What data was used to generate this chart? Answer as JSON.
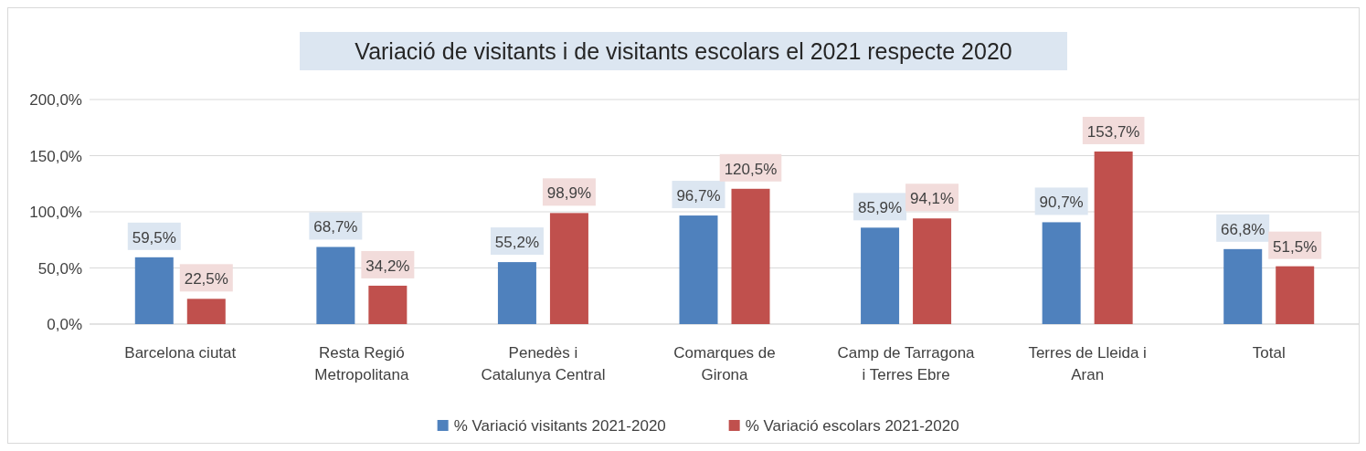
{
  "chart_data": {
    "type": "bar",
    "title": "Variació de visitants i de visitants escolars el 2021 respecte 2020",
    "categories": [
      "Barcelona ciutat",
      "Resta Regió Metropolitana",
      "Penedès i Catalunya Central",
      "Comarques de Girona",
      "Camp de Tarragona i Terres Ebre",
      "Terres de Lleida i Aran",
      "Total"
    ],
    "series": [
      {
        "name": "% Variació visitants 2021-2020",
        "color": "#4f81bd",
        "values": [
          59.5,
          68.7,
          55.2,
          96.7,
          85.9,
          90.7,
          66.8
        ],
        "value_labels": [
          "59,5%",
          "68,7%",
          "55,2%",
          "96,7%",
          "85,9%",
          "90,7%",
          "66,8%"
        ]
      },
      {
        "name": "% Variació escolars 2021-2020",
        "color": "#c0504d",
        "values": [
          22.5,
          34.2,
          98.9,
          120.5,
          94.1,
          153.7,
          51.5
        ],
        "value_labels": [
          "22,5%",
          "34,2%",
          "98,9%",
          "120,5%",
          "94,1%",
          "153,7%",
          "51,5%"
        ]
      }
    ],
    "ylim": [
      0,
      200
    ],
    "yticks": [
      {
        "value": 0,
        "label": "0,0%"
      },
      {
        "value": 50,
        "label": "50,0%"
      },
      {
        "value": 100,
        "label": "100,0%"
      },
      {
        "value": 150,
        "label": "150,0%"
      },
      {
        "value": 200,
        "label": "200,0%"
      }
    ],
    "grid": "y",
    "legend": "bottom"
  }
}
